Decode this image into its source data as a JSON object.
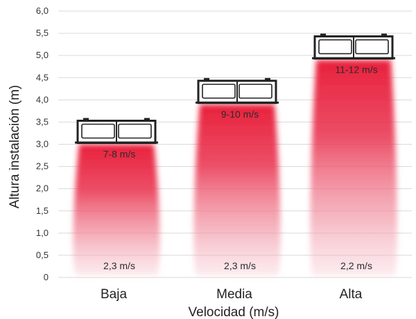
{
  "chart_data": {
    "type": "bar",
    "title": "",
    "xlabel": "Velocidad (m/s)",
    "ylabel": "Altura instalación (m)",
    "ylim": [
      0,
      6.0
    ],
    "yticks": [
      "0",
      "0,5",
      "1,0",
      "1,5",
      "2,0",
      "2,5",
      "3,0",
      "3,5",
      "4,0",
      "4,5",
      "5,0",
      "5,5",
      "6,0"
    ],
    "categories": [
      "Baja",
      "Media",
      "Alta"
    ],
    "values": [
      3.0,
      3.9,
      4.9
    ],
    "top_labels": [
      "7-8 m/s",
      "9-10 m/s",
      "11-12 m/s"
    ],
    "bottom_labels": [
      "2,3 m/s",
      "2,3 m/s",
      "2,2 m/s"
    ],
    "grid": true,
    "colors": {
      "bar": "#e8203c",
      "unit": "#222222",
      "grid": "#d9d9d9"
    },
    "icon": "air-curtain-unit-icon"
  }
}
